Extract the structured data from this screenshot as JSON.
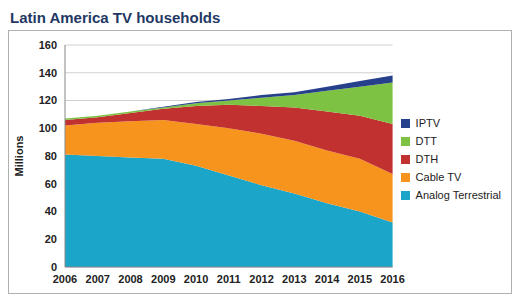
{
  "chart_data": {
    "type": "area",
    "title": "Latin America TV households",
    "y_label": "Millions",
    "stacked": true,
    "grid": true,
    "legend": "right",
    "categories": [
      "2006",
      "2007",
      "2008",
      "2009",
      "2010",
      "2011",
      "2012",
      "2013",
      "2014",
      "2015",
      "2016"
    ],
    "ylim": [
      0,
      160
    ],
    "yticks": [
      0,
      20,
      40,
      60,
      80,
      100,
      120,
      140,
      160
    ],
    "series": [
      {
        "name": "Analog Terrestrial",
        "color": "#1ba6c9",
        "values": [
          81,
          80,
          79,
          78,
          73,
          66,
          59,
          53,
          46,
          40,
          32
        ]
      },
      {
        "name": "Cable TV",
        "color": "#f7941d",
        "values": [
          21,
          24,
          26,
          28,
          30,
          34,
          37,
          38,
          38,
          38,
          35
        ]
      },
      {
        "name": "DTH",
        "color": "#c0312f",
        "values": [
          4,
          4,
          6,
          8,
          13,
          17,
          20,
          24,
          28,
          31,
          36
        ]
      },
      {
        "name": "DTT",
        "color": "#7dc242",
        "values": [
          1,
          1,
          1,
          1,
          2,
          3,
          6,
          9,
          15,
          21,
          30
        ]
      },
      {
        "name": "IPTV",
        "color": "#27408b",
        "values": [
          0,
          0,
          0,
          0.5,
          1,
          1,
          2,
          2,
          3,
          4,
          5
        ]
      }
    ]
  }
}
